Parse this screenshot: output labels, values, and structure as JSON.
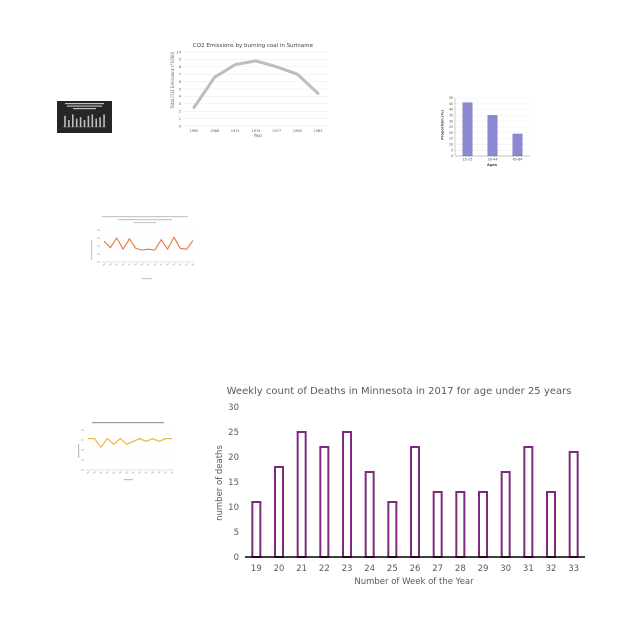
{
  "colors": {
    "coal_line": "#bdbdbd",
    "age_bar": "#8c88d2",
    "air_line": "#e8773c",
    "nox_line": "#f1b53a",
    "deaths_bar": "#7b2a7d",
    "dark_bg": "#262626"
  },
  "chart_data": [
    {
      "id": "thumb",
      "type": "bar",
      "title": "",
      "values": [
        8,
        5,
        9,
        6,
        7,
        5,
        8,
        9,
        6,
        7,
        9
      ],
      "ylim": [
        0,
        10
      ]
    },
    {
      "id": "coal",
      "type": "line",
      "title": "CO2 Emissions by burning coal in Suriname",
      "xlabel": "Year",
      "ylabel": "Total CO2 Emissions (*1000)",
      "categories": [
        "1965",
        "1968",
        "1971",
        "1974",
        "1977",
        "1980",
        "1983"
      ],
      "values": [
        2.5,
        6.6,
        8.3,
        8.8,
        8.0,
        7.0,
        4.4
      ],
      "y_ticks": [
        "0",
        "1",
        "2",
        "3",
        "4",
        "5",
        "6",
        "7",
        "8",
        "9",
        "10"
      ],
      "ylim": [
        0,
        10
      ]
    },
    {
      "id": "age",
      "type": "bar",
      "title": "",
      "xlabel": "Ages",
      "ylabel": "Proportion (%)",
      "categories": [
        "15–25",
        "26–44",
        "45–64"
      ],
      "values": [
        46,
        35,
        19
      ],
      "y_ticks": [
        "0",
        "5",
        "10",
        "15",
        "20",
        "25",
        "30",
        "35",
        "40",
        "45",
        "50"
      ],
      "ylim": [
        0,
        50
      ]
    },
    {
      "id": "air",
      "type": "line",
      "title": "",
      "xlabel": "",
      "ylabel": "",
      "values": [
        26,
        18,
        30,
        16,
        29,
        17,
        15,
        16,
        15,
        28,
        16,
        31,
        17,
        16,
        27
      ],
      "ylim": [
        0,
        40
      ]
    },
    {
      "id": "nox",
      "type": "line",
      "title": "",
      "xlabel": "",
      "ylabel": "",
      "values": [
        11,
        11,
        8,
        11,
        9,
        11,
        9,
        10,
        11,
        10,
        11,
        10,
        11,
        11
      ],
      "ylim": [
        0,
        14
      ]
    },
    {
      "id": "deaths",
      "type": "bar",
      "title": "Weekly count of Deaths in Minnesota in 2017 for age under 25 years",
      "xlabel": "Number of Week of the Year",
      "ylabel": "number of deaths",
      "categories": [
        "19",
        "20",
        "21",
        "22",
        "23",
        "24",
        "25",
        "26",
        "27",
        "28",
        "29",
        "30",
        "31",
        "32",
        "33"
      ],
      "values": [
        11,
        18,
        25,
        22,
        25,
        17,
        11,
        22,
        13,
        13,
        13,
        17,
        22,
        13,
        21
      ],
      "y_ticks": [
        "0",
        "5",
        "10",
        "15",
        "20",
        "25",
        "30"
      ],
      "ylim": [
        0,
        30
      ]
    }
  ]
}
